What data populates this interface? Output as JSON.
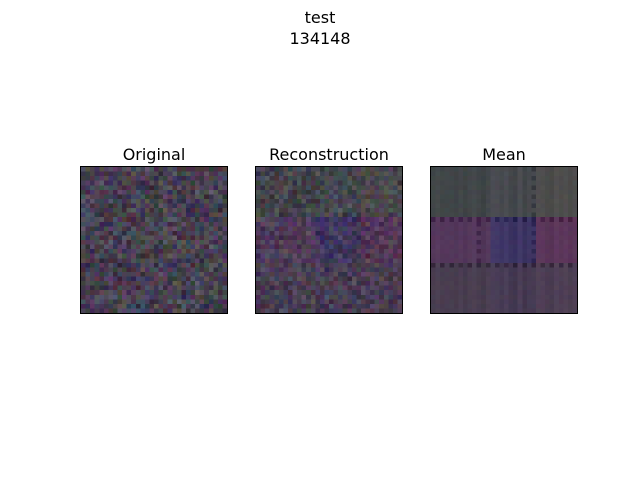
{
  "figure": {
    "suptitle_line1": "test",
    "suptitle_line2": "134148"
  },
  "panels": [
    {
      "title": "Original",
      "image": "noise-texture-dark-purple"
    },
    {
      "title": "Reconstruction",
      "image": "noisy-blocky-texture"
    },
    {
      "title": "Mean",
      "image": "smooth-blocky-grid-texture"
    }
  ],
  "colors": {
    "base": "#45404f",
    "frame": "#000000",
    "background": "#ffffff"
  }
}
